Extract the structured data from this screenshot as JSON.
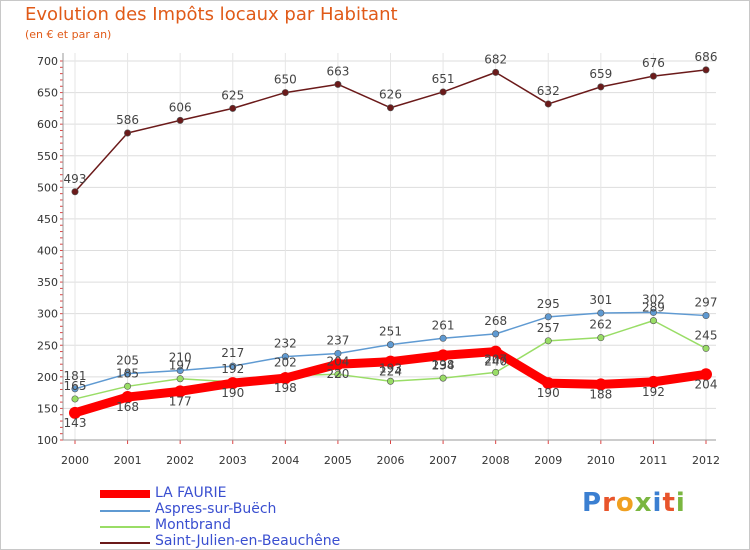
{
  "title": "Evolution des Impôts locaux par Habitant",
  "subtitle": "(en € et par an)",
  "logo": "Proxiti",
  "chart_data": {
    "type": "line",
    "title": "Evolution des Impôts locaux par Habitant",
    "ylabel": "(en € et par an)",
    "xlabel": "",
    "ylim": [
      100,
      700
    ],
    "yticks": [
      100,
      150,
      200,
      250,
      300,
      350,
      400,
      450,
      500,
      550,
      600,
      650,
      700
    ],
    "categories": [
      "2000",
      "2001",
      "2002",
      "2003",
      "2004",
      "2005",
      "2006",
      "2007",
      "2008",
      "2009",
      "2010",
      "2011",
      "2012"
    ],
    "series": [
      {
        "name": "LA FAURIE",
        "color": "#ff0000",
        "values": [
          143,
          168,
          177,
          190,
          198,
          220,
          224,
          234,
          240,
          190,
          188,
          192,
          204
        ]
      },
      {
        "name": "Aspres-sur-Buëch",
        "color": "#5f9ad2",
        "values": [
          181,
          205,
          210,
          217,
          232,
          237,
          251,
          261,
          268,
          295,
          301,
          302,
          297
        ]
      },
      {
        "name": "Montbrand",
        "color": "#99dd66",
        "values": [
          165,
          185,
          197,
          192,
          202,
          204,
          193,
          198,
          207,
          257,
          262,
          289,
          245
        ]
      },
      {
        "name": "Saint-Julien-en-Beauchêne",
        "color": "#6b1a1a",
        "values": [
          493,
          586,
          606,
          625,
          650,
          663,
          626,
          651,
          682,
          632,
          659,
          676,
          686
        ]
      }
    ]
  }
}
